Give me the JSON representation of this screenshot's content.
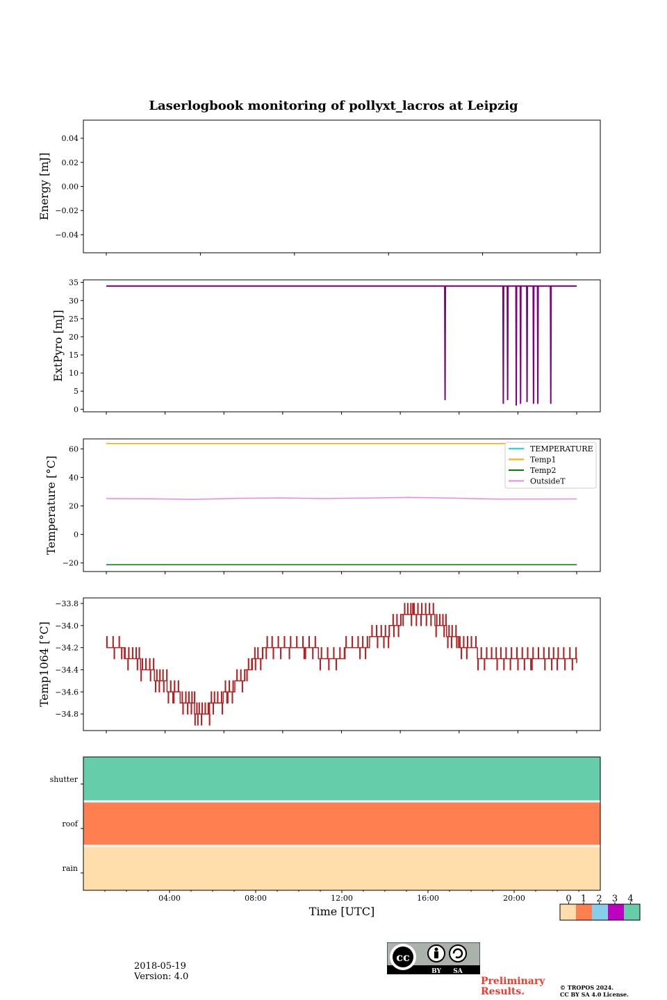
{
  "chart_data": [
    {
      "type": "line",
      "title": "Laserlogbook monitoring of pollyxt_lacros at Leipzig",
      "ylabel": "Energy [mJ]",
      "ylim": [
        -0.055,
        0.055
      ],
      "yticks": [
        "0.04",
        "0.02",
        "0.00",
        "−0.02",
        "−0.04"
      ],
      "ytick_values": [
        0.04,
        0.02,
        0.0,
        -0.02,
        -0.04
      ],
      "series": []
    },
    {
      "type": "line",
      "ylabel": "ExtPyro [mJ]",
      "ylim": [
        -0.7,
        35.7
      ],
      "yticks": [
        "35",
        "30",
        "25",
        "20",
        "15",
        "10",
        "5",
        "0"
      ],
      "ytick_values": [
        35,
        30,
        25,
        20,
        15,
        10,
        5,
        0
      ],
      "baseline": 34.0,
      "drops_hours": [
        16.7,
        19.4,
        19.6,
        20.0,
        20.2,
        20.5,
        20.8,
        21.0,
        21.6
      ],
      "drops_values": [
        2.5,
        1.5,
        2.5,
        1.0,
        1.5,
        2.0,
        1.5,
        1.5,
        1.5
      ],
      "color": "#800080"
    },
    {
      "type": "line",
      "ylabel": "Temperature [°C]",
      "ylim": [
        -26,
        67
      ],
      "yticks": [
        "60",
        "40",
        "20",
        "0",
        "−20"
      ],
      "ytick_values": [
        60,
        40,
        20,
        0,
        -20
      ],
      "legend": [
        "TEMPERATURE",
        "Temp1",
        "Temp2",
        "OutsideT"
      ],
      "legend_placement": "top-right",
      "series": [
        {
          "name": "TEMPERATURE",
          "color": "#00e5ee",
          "values": []
        },
        {
          "name": "Temp1",
          "color": "#ffa500",
          "x": [
            1,
            22.8
          ],
          "values": [
            63.7,
            63.7
          ]
        },
        {
          "name": "Temp2",
          "color": "#008000",
          "x": [
            1,
            22.8
          ],
          "values": [
            -21.2,
            -21.2
          ]
        },
        {
          "name": "OutsideT",
          "color": "#ee82ee",
          "x": [
            1,
            3,
            5,
            7,
            9,
            11,
            13,
            15,
            17,
            19,
            21,
            22.8
          ],
          "values": [
            25.2,
            25.0,
            24.6,
            25.3,
            25.6,
            25.2,
            25.5,
            26.0,
            25.5,
            24.8,
            24.8,
            24.9
          ]
        }
      ]
    },
    {
      "type": "line",
      "ylabel": "Temp1064 [°C]",
      "ylim": [
        -34.95,
        -33.75
      ],
      "yticks": [
        "−33.8",
        "−34.0",
        "−34.2",
        "−34.4",
        "−34.6",
        "−34.8"
      ],
      "ytick_values": [
        -33.8,
        -34.0,
        -34.2,
        -34.4,
        -34.6,
        -34.8
      ],
      "color": "#b22222",
      "x": [
        1.0,
        1.8,
        2.3,
        2.7,
        3.2,
        3.6,
        4.1,
        4.6,
        5.0,
        5.3,
        5.7,
        6.1,
        6.6,
        7.1,
        7.6,
        8.0,
        8.6,
        9.4,
        10.2,
        11.0,
        11.8,
        12.6,
        13.2,
        13.8,
        14.3,
        14.8,
        15.2,
        15.7,
        16.2,
        16.6,
        17.0,
        17.5,
        18.0,
        18.7,
        19.3,
        20.0,
        20.7,
        21.4,
        22.0,
        22.8
      ],
      "values": [
        -34.25,
        -34.25,
        -34.28,
        -34.38,
        -34.45,
        -34.52,
        -34.6,
        -34.68,
        -34.74,
        -34.78,
        -34.76,
        -34.7,
        -34.62,
        -34.52,
        -34.4,
        -34.28,
        -34.2,
        -34.2,
        -34.22,
        -34.26,
        -34.26,
        -34.22,
        -34.15,
        -34.1,
        -34.02,
        -33.92,
        -33.85,
        -33.88,
        -33.95,
        -34.02,
        -34.1,
        -34.18,
        -34.24,
        -34.28,
        -34.3,
        -34.32,
        -34.33,
        -34.35,
        -34.35,
        -34.34
      ]
    },
    {
      "type": "heatmap",
      "rows": [
        "shutter",
        "roof",
        "rain"
      ],
      "row_values": [
        4,
        1,
        0
      ],
      "xlabel": "Time [UTC]",
      "xticks": [
        "04:00",
        "08:00",
        "12:00",
        "16:00",
        "20:00"
      ],
      "xtick_hours": [
        4,
        8,
        12,
        16,
        20
      ],
      "xlim_hours": [
        0,
        24
      ],
      "colorbar": {
        "ticks": [
          "0",
          "1",
          "2",
          "3",
          "4"
        ],
        "colors": [
          "#ffdeac",
          "#ff7f50",
          "#87ceeb",
          "#c000c0",
          "#66cdaa"
        ]
      }
    }
  ],
  "footer": {
    "date": "2018-05-19",
    "version": "Version: 4.0",
    "preliminary": "Preliminary\nResults.",
    "copyright_line1": "© TROPOS 2024.",
    "copyright_line2": "CC BY SA 4.0 License.",
    "license_badge": {
      "by": "BY",
      "sa": "SA"
    }
  }
}
